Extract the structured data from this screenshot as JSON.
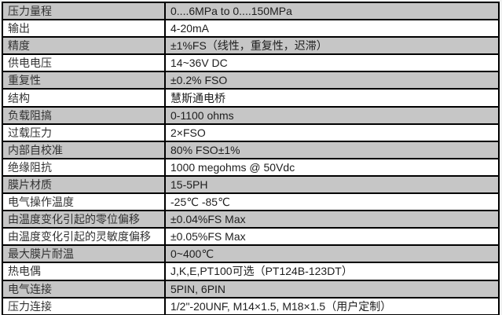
{
  "colors": {
    "page_background": "#f0f1f1",
    "row_gray": "#c6c6c6",
    "row_white": "#ffffff",
    "grid_border": "#000000",
    "text": "#262626"
  },
  "table": {
    "rows": [
      {
        "label": "压力量程",
        "value": "0....6MPa to 0....150MPa"
      },
      {
        "label": "输出",
        "value": "4-20mA"
      },
      {
        "label": "精度",
        "value": "±1%FS（线性，重复性，迟滞）"
      },
      {
        "label": "供电电压",
        "value": "14~36V DC"
      },
      {
        "label": "重复性",
        "value": "±0.2% FSO"
      },
      {
        "label": "结构",
        "value": "慧斯通电桥"
      },
      {
        "label": "负载阻搞",
        "value": "0-1100 ohms"
      },
      {
        "label": "过载压力",
        "value": "2×FSO"
      },
      {
        "label": "内部自校准",
        "value": "80% FSO±1%"
      },
      {
        "label": "绝缘阻抗",
        "value": "1000 megohms @ 50Vdc"
      },
      {
        "label": "膜片材质",
        "value": "15-5PH"
      },
      {
        "label": "电气操作温度",
        "value": "-25℃ -85℃"
      },
      {
        "label": "由温度变化引起的零位偏移",
        "value": "±0.04%FS Max"
      },
      {
        "label": "由温度变化引起的灵敏度偏移",
        "value": "±0.05%FS Max"
      },
      {
        "label": "最大膜片耐温",
        "value": "0~400℃"
      },
      {
        "label": "热电偶",
        "value": "J,K,E,PT100可选（PT124B-123DT）"
      },
      {
        "label": "电气连接",
        "value": "5PIN, 6PIN"
      },
      {
        "label": "压力连接",
        "value": "1/2\"-20UNF, M14×1.5, M18×1.5（用户定制）"
      }
    ]
  }
}
